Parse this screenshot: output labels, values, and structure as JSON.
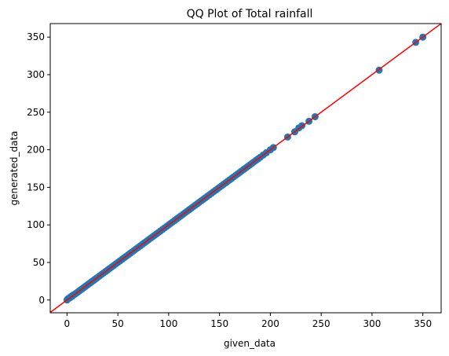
{
  "chart_data": {
    "type": "scatter",
    "title": "QQ Plot of Total rainfall",
    "xlabel": "given_data",
    "ylabel": "generated_data",
    "xlim": [
      -16.5,
      368
    ],
    "ylim": [
      -17,
      368
    ],
    "xticks": [
      0,
      50,
      100,
      150,
      200,
      250,
      300,
      350
    ],
    "yticks": [
      0,
      50,
      100,
      150,
      200,
      250,
      300,
      350
    ],
    "grid": false,
    "legend": "none",
    "point_color": "#1f77b4",
    "line_color": "#ff0000",
    "reference_line": {
      "slope": 1,
      "intercept": 0
    },
    "series": [
      {
        "x": [
          0,
          0.5,
          1,
          1.5,
          2,
          2.5,
          3,
          3.5,
          4,
          4.5,
          5,
          5.5,
          6,
          7,
          8,
          9,
          10,
          11,
          12,
          13,
          14,
          15,
          16,
          17,
          18,
          19,
          20,
          21,
          22,
          23,
          24,
          25,
          26,
          27,
          28,
          29,
          30,
          32,
          34,
          36,
          38,
          40,
          42,
          44,
          46,
          48,
          50,
          52,
          54,
          56,
          58,
          60,
          62,
          64,
          66,
          68,
          70,
          72,
          74,
          76,
          78,
          80,
          82,
          84,
          86,
          88,
          90,
          92,
          94,
          96,
          98,
          100,
          102,
          104,
          106,
          108,
          110,
          112,
          114,
          116,
          118,
          120,
          122,
          124,
          126,
          128,
          130,
          132,
          134,
          136,
          138,
          140,
          142,
          144,
          146,
          148,
          150,
          152,
          154,
          156,
          158,
          160,
          162,
          164,
          166,
          168,
          170,
          172,
          174,
          176,
          178,
          180,
          182,
          184,
          186,
          188,
          190,
          193,
          196,
          200,
          203,
          217,
          224,
          228,
          231,
          238,
          244,
          307,
          343,
          350
        ],
        "y": [
          0,
          1,
          1.5,
          2,
          2.5,
          3,
          3,
          4,
          4.5,
          5,
          5,
          6,
          6.5,
          7,
          8,
          9,
          10,
          11,
          12,
          13,
          14,
          15,
          16,
          17,
          18,
          19,
          20,
          21,
          22,
          23,
          24,
          25,
          26,
          27,
          28,
          29,
          30,
          32,
          34,
          36,
          38,
          40,
          42,
          44,
          46,
          48,
          50,
          52,
          54,
          56,
          58,
          60,
          62,
          64,
          66,
          68,
          70,
          72,
          74,
          76,
          78,
          80,
          82,
          84,
          86,
          88,
          90,
          92,
          94,
          96,
          98,
          100,
          102,
          104,
          106,
          108,
          110,
          112,
          114,
          116,
          118,
          120,
          122,
          124,
          126,
          128,
          130,
          132,
          134,
          136,
          138,
          140,
          142,
          144,
          146,
          148,
          150,
          152,
          154,
          156,
          158,
          160,
          162,
          164,
          166,
          168,
          170,
          172,
          174,
          176,
          178,
          180,
          182,
          184,
          186,
          188,
          190,
          193,
          196,
          200,
          203,
          217,
          224,
          229,
          232,
          238,
          244,
          306,
          343,
          350
        ]
      }
    ]
  }
}
